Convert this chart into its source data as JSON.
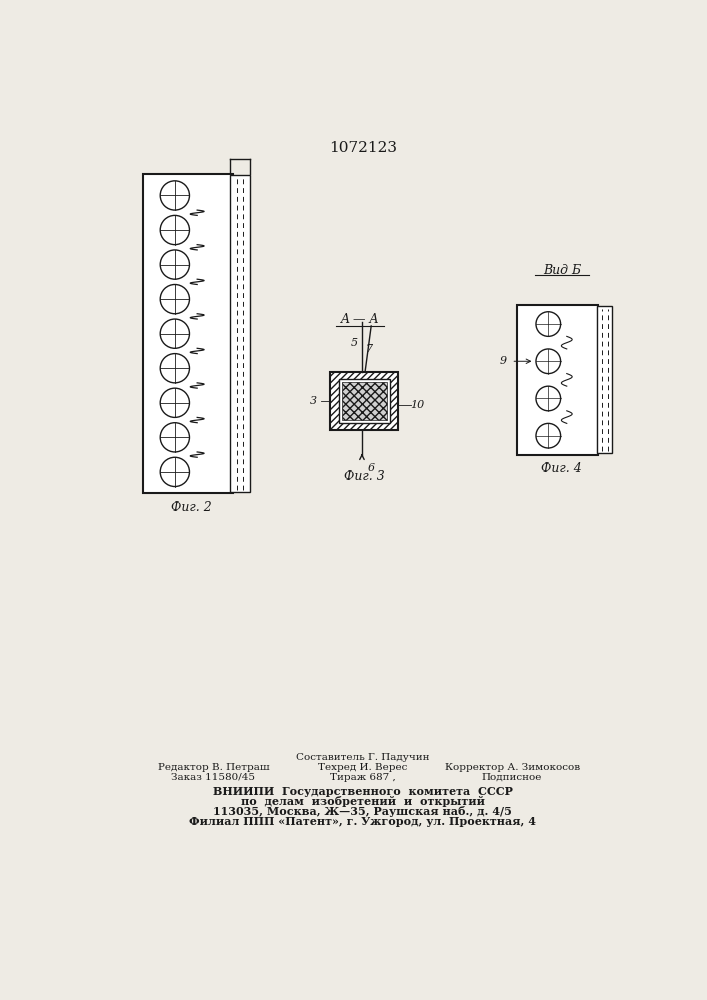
{
  "title": "1072123",
  "background_color": "#eeebe4",
  "line_color": "#1a1a1a",
  "fig2_label": "Фиг. 2",
  "fig3_label": "Фиг. 3",
  "fig4_label": "Фиг. 4",
  "section_label": "A — A",
  "view_label": "Вид Б",
  "num_circles_fig2": 9,
  "num_circles_fig4": 4,
  "labels_fig3": [
    "5",
    "7",
    "3",
    "10",
    "6"
  ],
  "label_fig4_arrow": "9",
  "footer_col1_line1": "Редактор В. Петраш",
  "footer_col1_line2": "Заказ 11580/45",
  "footer_col2_line1": "Составитель Г. Падучин",
  "footer_col2_line2": "Техред И. Верес",
  "footer_col2_line3": "Тираж 687 ,",
  "footer_col3_line1": "Корректор А. Зимокосов",
  "footer_col3_line2": "Подписное",
  "footer_vniip1": "ВНИИПИ  Государственного  комитета  СССР",
  "footer_vniip2": "по  делам  изобретений  и  открытий",
  "footer_vniip3": "113035, Москва, Ж—35, Раушская наб., д. 4/5",
  "footer_vniip4": "Филиал ППП «Патент», г. Ужгород, ул. Проектная, 4"
}
